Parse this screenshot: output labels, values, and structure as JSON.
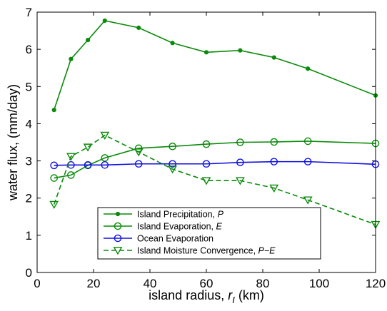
{
  "chart_data": {
    "type": "line",
    "xlabel": "island radius, ",
    "xlabel_symbol": "r",
    "xlabel_subscript": "I",
    "xlabel_unit": " (km)",
    "ylabel": "water flux, (mm/day)",
    "xlim": [
      0,
      120
    ],
    "ylim": [
      0,
      7
    ],
    "xticks": [
      0,
      20,
      40,
      60,
      80,
      100,
      120
    ],
    "yticks": [
      0,
      1,
      2,
      3,
      4,
      5,
      6,
      7
    ],
    "grid": false,
    "legend_position": "bottom-center",
    "series": [
      {
        "name": "Island Precipitation, ",
        "name_italic": "P",
        "color": "#0a8a0a",
        "style": "solid",
        "marker": "dot",
        "x": [
          6,
          12,
          18,
          24,
          36,
          48,
          60,
          72,
          84,
          96,
          120
        ],
        "y": [
          4.37,
          5.74,
          6.25,
          6.77,
          6.58,
          6.17,
          5.92,
          5.97,
          5.78,
          5.48,
          4.76
        ]
      },
      {
        "name": "Island Evaporation, ",
        "name_italic": "E",
        "color": "#0a8a0a",
        "style": "solid",
        "marker": "circle",
        "x": [
          6,
          12,
          18,
          24,
          36,
          48,
          60,
          72,
          84,
          96,
          120
        ],
        "y": [
          2.54,
          2.62,
          2.88,
          3.08,
          3.34,
          3.39,
          3.45,
          3.5,
          3.51,
          3.53,
          3.47
        ]
      },
      {
        "name": "Ocean Evaporation",
        "name_italic": "",
        "color": "#1010e0",
        "style": "solid",
        "marker": "circle",
        "x": [
          6,
          12,
          18,
          24,
          36,
          48,
          60,
          72,
          84,
          96,
          120
        ],
        "y": [
          2.88,
          2.89,
          2.89,
          2.89,
          2.92,
          2.92,
          2.92,
          2.96,
          2.98,
          2.98,
          2.91
        ]
      },
      {
        "name": "Island Moisture Convergence, ",
        "name_italic": "P−E",
        "color": "#0a8a0a",
        "style": "dashed",
        "marker": "triangle-down",
        "x": [
          6,
          12,
          18,
          24,
          36,
          48,
          60,
          72,
          84,
          96,
          120
        ],
        "y": [
          1.83,
          3.12,
          3.37,
          3.69,
          3.24,
          2.78,
          2.47,
          2.47,
          2.27,
          1.95,
          1.29
        ]
      }
    ]
  }
}
